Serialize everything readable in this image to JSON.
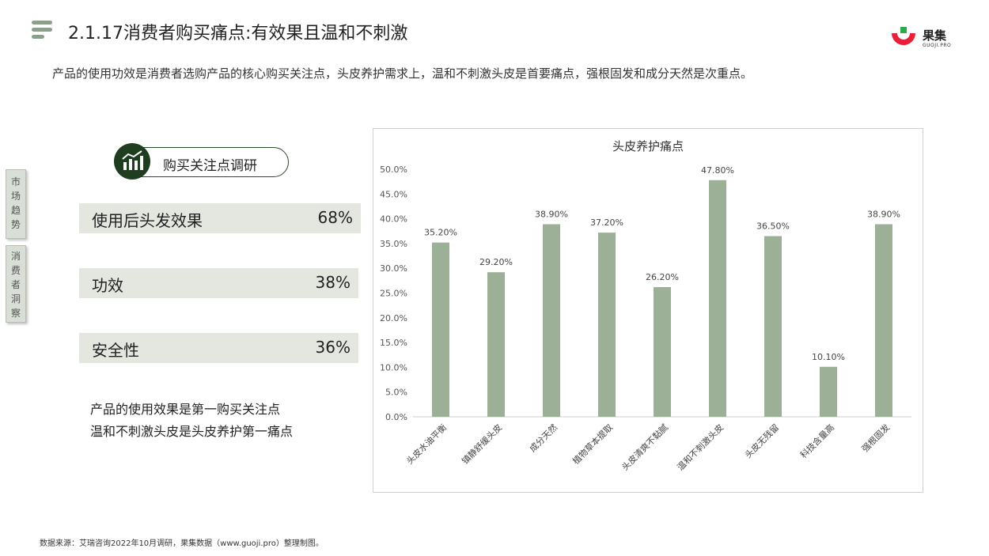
{
  "header": {
    "title": "2.1.17消费者购买痛点:有效果且温和不刺激",
    "subtitle": "产品的使用功效是消费者选购产品的核心购买关注点，头皮养护需求上，温和不刺激头皮是首要痛点，强根固发和成分天然是次重点。",
    "logo_name": "果集",
    "logo_sub": "GUOJI.PRO"
  },
  "side_tabs": [
    {
      "label": "市场趋势"
    },
    {
      "label": "消费者洞察"
    }
  ],
  "survey": {
    "label": "购买关注点调研",
    "factors": [
      {
        "name": "使用后头发效果",
        "value": "68%"
      },
      {
        "name": "功效",
        "value": "38%"
      },
      {
        "name": "安全性",
        "value": "36%"
      }
    ],
    "summary_lines": [
      "产品的使用效果是第一购买关注点",
      "温和不刺激头皮是头皮养护第一痛点"
    ]
  },
  "chart_data": {
    "type": "bar",
    "title": "头皮养护痛点",
    "categories": [
      "头皮水油平衡",
      "镇静舒缓头皮",
      "成分天然",
      "植物草本提取",
      "头皮清爽不黏腻",
      "温和不刺激头皮",
      "头皮无残留",
      "科技含量高",
      "强根固发"
    ],
    "values": [
      35.2,
      29.2,
      38.9,
      37.2,
      26.2,
      47.8,
      36.5,
      10.1,
      38.9
    ],
    "value_labels": [
      "35.20%",
      "29.20%",
      "38.90%",
      "37.20%",
      "26.20%",
      "47.80%",
      "36.50%",
      "10.10%",
      "38.90%"
    ],
    "ylim": [
      0,
      50
    ],
    "yticks": [
      "0.0%",
      "5.0%",
      "10.0%",
      "15.0%",
      "20.0%",
      "25.0%",
      "30.0%",
      "35.0%",
      "40.0%",
      "45.0%",
      "50.0%"
    ],
    "grid": false,
    "bar_color": "#9cb097"
  },
  "footer": {
    "source": "数据来源：艾瑞咨询2022年10月调研，果集数据（www.guoji.pro）整理制图。"
  }
}
